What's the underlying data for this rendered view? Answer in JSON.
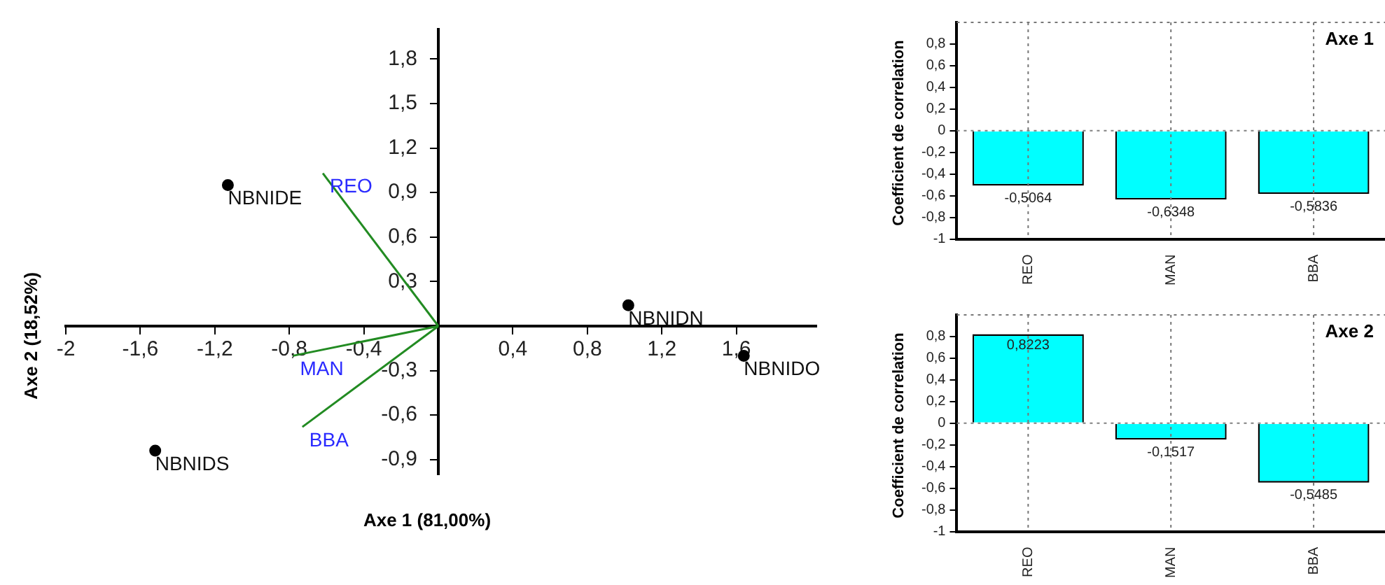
{
  "chart_data": [
    {
      "type": "scatter",
      "xlabel": "Axe 1 (81,00%)",
      "ylabel": "Axe 2 (18,52%)",
      "xlim": [
        -2,
        2.03
      ],
      "ylim": [
        -1,
        2
      ],
      "xticks": [
        -2,
        {
          "value": -1.6,
          "label": "-1,6"
        },
        {
          "value": -1.2,
          "label": "-1,2"
        },
        {
          "value": -0.8,
          "label": "-0,8"
        },
        {
          "value": -0.4,
          "label": "-0,4"
        },
        {
          "value": 0.4,
          "label": "0,4"
        },
        {
          "value": 0.8,
          "label": "0,8"
        },
        {
          "value": 1.2,
          "label": "1,2"
        },
        {
          "value": 1.6,
          "label": "1,6"
        }
      ],
      "yticks": [
        {
          "value": -0.9,
          "label": "-0,9"
        },
        {
          "value": -0.6,
          "label": "-0,6"
        },
        {
          "value": -0.3,
          "label": "-0,3"
        },
        {
          "value": 0.3,
          "label": "0,3"
        },
        {
          "value": 0.6,
          "label": "0,6"
        },
        {
          "value": 0.9,
          "label": "0,9"
        },
        {
          "value": 1.2,
          "label": "1,2"
        },
        {
          "value": 1.5,
          "label": "1,5"
        },
        {
          "value": 1.8,
          "label": "1,8"
        }
      ],
      "series": [
        {
          "type": "scatter",
          "color": "#000000",
          "marker": "circle",
          "x": [
            -1.13,
            1.02,
            1.64,
            -1.52
          ],
          "values": [
            0.95,
            0.14,
            -0.2,
            -0.84
          ]
        },
        {
          "type": "line",
          "name": "REO",
          "color": "#228b22",
          "marker": "none",
          "x": [
            0,
            -0.62
          ],
          "values": [
            0,
            1.03
          ]
        },
        {
          "type": "line",
          "name": "MAN",
          "color": "#228b22",
          "marker": "none",
          "x": [
            0,
            -0.78
          ],
          "values": [
            0,
            -0.2
          ]
        },
        {
          "type": "line",
          "name": "BBA",
          "color": "#228b22",
          "marker": "none",
          "x": [
            0,
            -0.73
          ],
          "values": [
            0,
            -0.68
          ]
        }
      ],
      "annotations": [
        {
          "text": "NBNIDE",
          "x": -1.13,
          "y": 0.95
        },
        {
          "text": "NBNIDN",
          "x": 1.02,
          "y": 0.14
        },
        {
          "text": "NBNIDO",
          "x": 1.64,
          "y": -0.2
        },
        {
          "text": "NBNIDS",
          "x": -1.52,
          "y": -0.84
        }
      ]
    },
    {
      "type": "bar",
      "title": "Axe 1",
      "ylabel": "Coefficient de correlation",
      "categories": [
        "REO",
        "MAN",
        "BBA"
      ],
      "values": [
        -0.5064,
        -0.6348,
        -0.5836
      ],
      "value_labels": [
        "-0,5064",
        "-0,6348",
        "-0,5836"
      ],
      "color": "#00ffff",
      "ylim": [
        -1,
        1
      ],
      "yticks": [
        {
          "value": -1,
          "label": "-1"
        },
        {
          "value": -0.8,
          "label": "-0,8"
        },
        {
          "value": -0.6,
          "label": "-0,6"
        },
        {
          "value": -0.4,
          "label": "-0,4"
        },
        {
          "value": -0.2,
          "label": "-0,2"
        },
        {
          "value": 0,
          "label": "0"
        },
        {
          "value": 0.2,
          "label": "0,2"
        },
        {
          "value": 0.4,
          "label": "0,4"
        },
        {
          "value": 0.6,
          "label": "0,6"
        },
        {
          "value": 0.8,
          "label": "0,8"
        }
      ],
      "grid": "x",
      "ref_lines": [
        {
          "axis": "y",
          "value": 0,
          "color": "#808080",
          "line_style": "dotted"
        }
      ]
    },
    {
      "type": "bar",
      "title": "Axe 2",
      "ylabel": "Coefficient de correlation",
      "categories": [
        "REO",
        "MAN",
        "BBA"
      ],
      "values": [
        0.8223,
        -0.1517,
        -0.5485
      ],
      "value_labels": [
        "0,8223",
        "-0,1517",
        "-0,5485"
      ],
      "color": "#00ffff",
      "ylim": [
        -1,
        1
      ],
      "yticks": [
        {
          "value": -1,
          "label": "-1"
        },
        {
          "value": -0.8,
          "label": "-0,8"
        },
        {
          "value": -0.6,
          "label": "-0,6"
        },
        {
          "value": -0.4,
          "label": "-0,4"
        },
        {
          "value": -0.2,
          "label": "-0,2"
        },
        {
          "value": 0,
          "label": "0"
        },
        {
          "value": 0.2,
          "label": "0,2"
        },
        {
          "value": 0.4,
          "label": "0,4"
        },
        {
          "value": 0.6,
          "label": "0,6"
        },
        {
          "value": 0.8,
          "label": "0,8"
        }
      ],
      "grid": "x",
      "ref_lines": [
        {
          "axis": "y",
          "value": 0,
          "color": "#808080",
          "line_style": "dotted"
        }
      ]
    }
  ]
}
